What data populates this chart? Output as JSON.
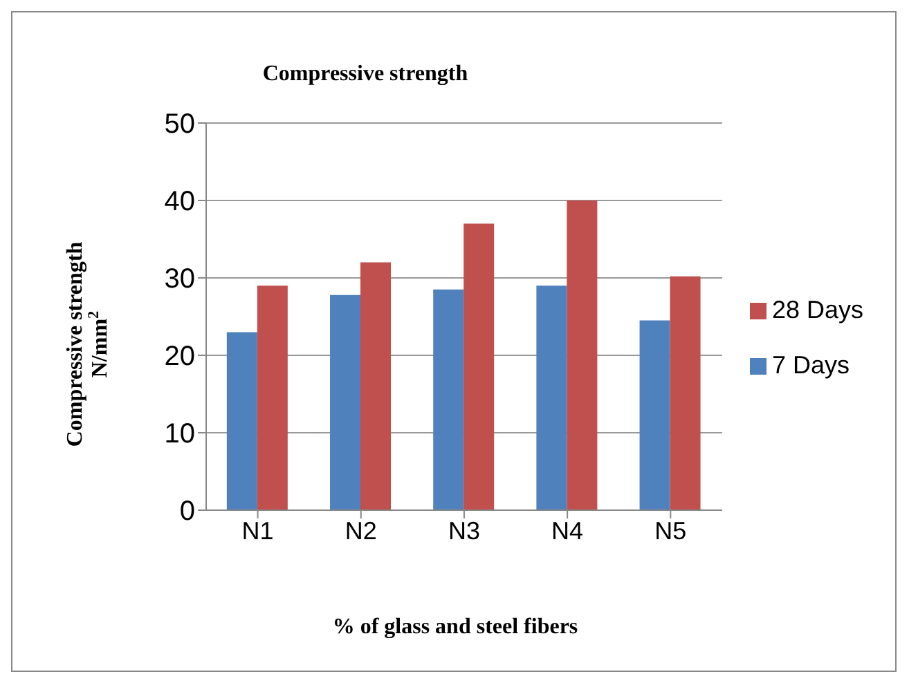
{
  "chart_data": {
    "type": "bar",
    "title": "Compressive strength",
    "xlabel": "% of glass and steel fibers",
    "ylabel": "Compressive strength\nN/mm$^{2}$",
    "categories": [
      "N1",
      "N2",
      "N3",
      "N4",
      "N5"
    ],
    "series": [
      {
        "name": "7 Days",
        "color": "#4f81bd",
        "values": [
          23,
          27.8,
          28.5,
          29,
          24.5
        ]
      },
      {
        "name": "28 Days",
        "color": "#c0504d",
        "values": [
          29,
          32,
          37,
          40,
          30.2
        ]
      }
    ],
    "ylim": [
      0,
      50
    ],
    "yticks": [
      0,
      10,
      20,
      30,
      40,
      50
    ],
    "grid": "y",
    "legend": "right"
  }
}
